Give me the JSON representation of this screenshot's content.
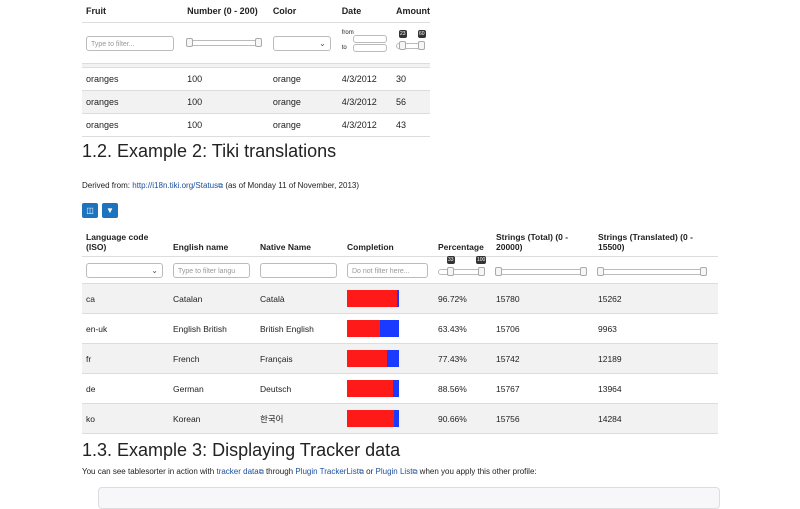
{
  "table1": {
    "headers": [
      "Fruit",
      "Number (0 - 200)",
      "Color",
      "Date",
      "Amount"
    ],
    "filter_placeholder": "Type to filter...",
    "date_from": "from",
    "date_to": "to",
    "amount_range": [
      "23",
      "60"
    ],
    "rows": [
      [
        "oranges",
        "100",
        "orange",
        "4/3/2012",
        "30"
      ],
      [
        "oranges",
        "100",
        "orange",
        "4/3/2012",
        "56"
      ],
      [
        "oranges",
        "100",
        "orange",
        "4/3/2012",
        "43"
      ]
    ]
  },
  "section2": {
    "title": "1.2. Example 2: Tiki translations",
    "derived_prefix": "Derived from:",
    "derived_link": "http://i18n.tiki.org/Status",
    "derived_suffix": "(as of Monday 11 of November, 2013)"
  },
  "table2": {
    "headers": [
      "Language code (ISO)",
      "English name",
      "Native Name",
      "Completion",
      "Percentage",
      "Strings (Total) (0 - 20000)",
      "Strings (Translated) (0 - 15500)"
    ],
    "filter_placeholder_english": "Type to filter langu",
    "filter_placeholder_completion": "Do not filter here...",
    "percentage_range": [
      "33",
      "100"
    ],
    "rows": [
      {
        "code": "ca",
        "english": "Catalan",
        "native": "Català",
        "completion": 0.9672,
        "percentage": "96.72%",
        "total": "15780",
        "translated": "15262"
      },
      {
        "code": "en-uk",
        "english": "English British",
        "native": "British English",
        "completion": 0.6343,
        "percentage": "63.43%",
        "total": "15706",
        "translated": "9963"
      },
      {
        "code": "fr",
        "english": "French",
        "native": "Français",
        "completion": 0.7743,
        "percentage": "77.43%",
        "total": "15742",
        "translated": "12189"
      },
      {
        "code": "de",
        "english": "German",
        "native": "Deutsch",
        "completion": 0.8856,
        "percentage": "88.56%",
        "total": "15767",
        "translated": "13964"
      },
      {
        "code": "ko",
        "english": "Korean",
        "native": "한국어",
        "completion": 0.9066,
        "percentage": "90.66%",
        "total": "15756",
        "translated": "14284"
      }
    ]
  },
  "section3": {
    "title": "1.3. Example 3: Displaying Tracker data",
    "p_prefix": "You can see tablesorter in action with",
    "link1": "tracker data",
    "p_mid1": "through",
    "link2": "Plugin TrackerList",
    "p_mid2": "or",
    "link3": "Plugin List",
    "p_suffix": "when you apply this other profile:"
  },
  "colors": {
    "complete": "#ff1a1a",
    "incomplete": "#1a3bff",
    "button": "#1e73be",
    "link": "#1a4f9c"
  },
  "icons": [
    "columns-icon",
    "filter-icon",
    "external-link-icon",
    "chevron-down-icon"
  ]
}
